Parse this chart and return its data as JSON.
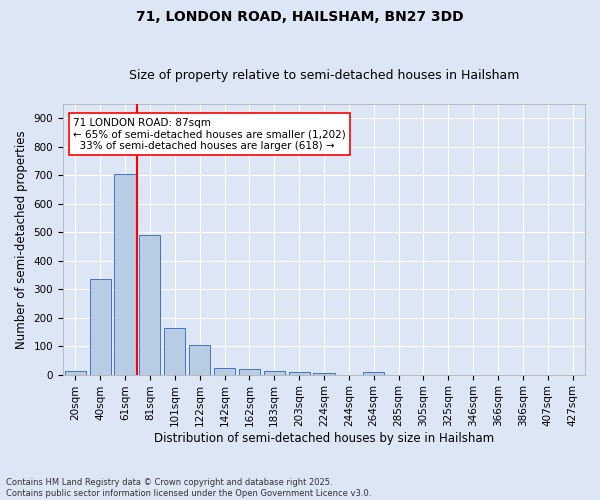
{
  "title_line1": "71, LONDON ROAD, HAILSHAM, BN27 3DD",
  "title_line2": "Size of property relative to semi-detached houses in Hailsham",
  "xlabel": "Distribution of semi-detached houses by size in Hailsham",
  "ylabel": "Number of semi-detached properties",
  "categories": [
    "20sqm",
    "40sqm",
    "61sqm",
    "81sqm",
    "101sqm",
    "122sqm",
    "142sqm",
    "162sqm",
    "183sqm",
    "203sqm",
    "224sqm",
    "244sqm",
    "264sqm",
    "285sqm",
    "305sqm",
    "325sqm",
    "346sqm",
    "366sqm",
    "386sqm",
    "407sqm",
    "427sqm"
  ],
  "values": [
    12,
    335,
    705,
    490,
    165,
    105,
    22,
    20,
    12,
    8,
    5,
    0,
    9,
    0,
    0,
    0,
    0,
    0,
    0,
    0,
    0
  ],
  "bar_color": "#b8cce4",
  "bar_edge_color": "#4472c4",
  "vline_color": "red",
  "annotation_text": "71 LONDON ROAD: 87sqm\n← 65% of semi-detached houses are smaller (1,202)\n  33% of semi-detached houses are larger (618) →",
  "annotation_box_color": "white",
  "annotation_box_edge": "red",
  "ylim": [
    0,
    950
  ],
  "yticks": [
    0,
    100,
    200,
    300,
    400,
    500,
    600,
    700,
    800,
    900
  ],
  "footer": "Contains HM Land Registry data © Crown copyright and database right 2025.\nContains public sector information licensed under the Open Government Licence v3.0.",
  "bg_color": "#dce6f5",
  "grid_color": "#ffffff",
  "title_fontsize": 10,
  "subtitle_fontsize": 9,
  "tick_fontsize": 7.5,
  "label_fontsize": 8.5
}
